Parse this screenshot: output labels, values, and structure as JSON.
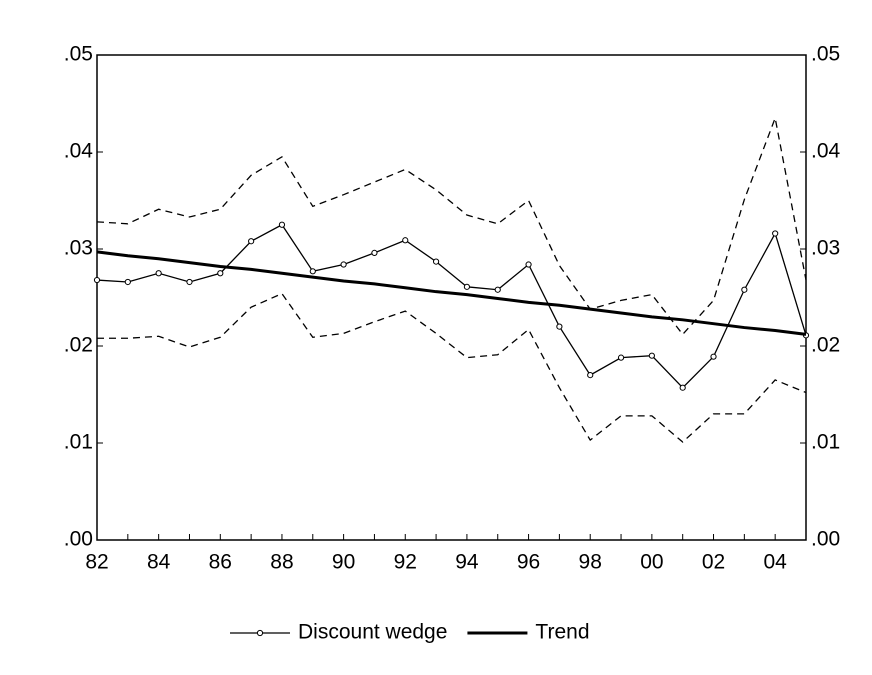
{
  "chart_data": {
    "type": "line",
    "categories": [
      "82",
      null,
      "84",
      null,
      "86",
      null,
      "88",
      null,
      "90",
      null,
      "92",
      null,
      "94",
      null,
      "96",
      null,
      "98",
      null,
      "00",
      null,
      "02",
      null,
      "04",
      null
    ],
    "series": [
      {
        "values": [
          0.0328,
          0.0326,
          0.0341,
          0.0333,
          0.0341,
          0.0376,
          0.0395,
          0.0344,
          0.0356,
          0.0369,
          0.0382,
          0.0361,
          0.0335,
          0.0326,
          0.035,
          0.0283,
          0.0238,
          0.0247,
          0.0253,
          0.0212,
          0.0247,
          0.0351,
          0.0435,
          0.0268
        ],
        "color": "#000000",
        "dash": true
      },
      {
        "values": [
          0.0208,
          0.0208,
          0.021,
          0.0199,
          0.0209,
          0.024,
          0.0254,
          0.0209,
          0.0213,
          0.0225,
          0.0236,
          0.0213,
          0.0188,
          0.0191,
          0.0217,
          0.0157,
          0.0103,
          0.0128,
          0.0128,
          0.0101,
          0.013,
          0.013,
          0.0165,
          0.0152
        ],
        "color": "#000000",
        "dash": true
      },
      {
        "name": "Discount wedge",
        "values": [
          0.0268,
          0.0266,
          0.0275,
          0.0266,
          0.0275,
          0.0308,
          0.0325,
          0.0277,
          0.0284,
          0.0296,
          0.0309,
          0.0287,
          0.0261,
          0.0258,
          0.0284,
          0.022,
          0.017,
          0.0188,
          0.019,
          0.0157,
          0.0189,
          0.0258,
          0.0316,
          0.0211
        ],
        "color": "#000000",
        "markers": true
      },
      {
        "name": "Trend",
        "values": [
          0.0297,
          0.0293,
          0.029,
          0.0286,
          0.0282,
          0.0279,
          0.0275,
          0.0271,
          0.0267,
          0.0264,
          0.026,
          0.0256,
          0.0253,
          0.0249,
          0.0245,
          0.0242,
          0.0238,
          0.0234,
          0.023,
          0.0227,
          0.0223,
          0.0219,
          0.0216,
          0.0212
        ],
        "color": "#000000",
        "bold": true
      }
    ],
    "ylim": [
      0,
      0.05
    ],
    "yticks": [
      {
        "value": 0,
        "label": ".00"
      },
      {
        "value": 0.01,
        "label": ".01"
      },
      {
        "value": 0.02,
        "label": ".02"
      },
      {
        "value": 0.03,
        "label": ".03"
      },
      {
        "value": 0.04,
        "label": ".04"
      },
      {
        "value": 0.05,
        "label": ".05"
      }
    ],
    "y2lim": [
      0,
      0.05
    ],
    "y2ticks": [
      {
        "value": 0,
        "label": ".00"
      },
      {
        "value": 0.01,
        "label": ".01"
      },
      {
        "value": 0.02,
        "label": ".02"
      },
      {
        "value": 0.03,
        "label": ".03"
      },
      {
        "value": 0.04,
        "label": ".04"
      },
      {
        "value": 0.05,
        "label": ".05"
      }
    ],
    "legend": "bottom"
  }
}
